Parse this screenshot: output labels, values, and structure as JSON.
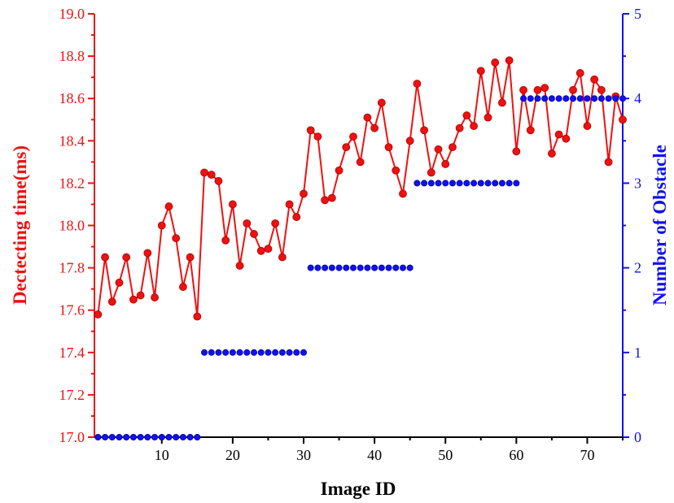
{
  "chart_data": {
    "type": "line",
    "xlabel": "Image ID",
    "ylabel_left": "Dectecting time(ms)",
    "ylabel_right": "Number of Obstacle",
    "xlim": [
      0.5,
      75
    ],
    "ylim_left": [
      17.0,
      19.0
    ],
    "ylim_right": [
      0,
      5
    ],
    "x_ticks": [
      10,
      20,
      30,
      40,
      50,
      60,
      70
    ],
    "y_left_ticks": [
      "17.0",
      "17.2",
      "17.4",
      "17.6",
      "17.8",
      "18.0",
      "18.2",
      "18.4",
      "18.6",
      "18.8",
      "19.0"
    ],
    "y_right_ticks": [
      "0",
      "1",
      "2",
      "3",
      "4",
      "5"
    ],
    "grid": false,
    "series": [
      {
        "axis": "left",
        "color": "#ee1111",
        "marker": "circle",
        "x": [
          1,
          2,
          3,
          4,
          5,
          6,
          7,
          8,
          9,
          10,
          11,
          12,
          13,
          14,
          15,
          16,
          17,
          18,
          19,
          20,
          21,
          22,
          23,
          24,
          25,
          26,
          27,
          28,
          29,
          30,
          31,
          32,
          33,
          34,
          35,
          36,
          37,
          38,
          39,
          40,
          41,
          42,
          43,
          44,
          45,
          46,
          47,
          48,
          49,
          50,
          51,
          52,
          53,
          54,
          55,
          56,
          57,
          58,
          59,
          60,
          61,
          62,
          63,
          64,
          65,
          66,
          67,
          68,
          69,
          70,
          71,
          72,
          73,
          74,
          75
        ],
        "values": [
          17.58,
          17.85,
          17.64,
          17.73,
          17.85,
          17.65,
          17.67,
          17.87,
          17.66,
          18.0,
          18.09,
          17.94,
          17.71,
          17.85,
          17.57,
          18.25,
          18.24,
          18.21,
          17.93,
          18.1,
          17.81,
          18.01,
          17.96,
          17.88,
          17.89,
          18.01,
          17.85,
          18.1,
          18.04,
          18.15,
          18.45,
          18.42,
          18.12,
          18.13,
          18.26,
          18.37,
          18.42,
          18.3,
          18.51,
          18.46,
          18.58,
          18.37,
          18.26,
          18.15,
          18.4,
          18.67,
          18.45,
          18.25,
          18.36,
          18.29,
          18.37,
          18.46,
          18.52,
          18.47,
          18.73,
          18.51,
          18.77,
          18.58,
          18.78,
          18.35,
          18.64,
          18.45,
          18.64,
          18.65,
          18.34,
          18.43,
          18.41,
          18.64,
          18.72,
          18.47,
          18.69,
          18.64,
          18.3,
          18.61,
          18.5
        ]
      },
      {
        "axis": "right",
        "color": "#1111ee",
        "marker": "circle",
        "x": [
          1,
          2,
          3,
          4,
          5,
          6,
          7,
          8,
          9,
          10,
          11,
          12,
          13,
          14,
          15,
          16,
          17,
          18,
          19,
          20,
          21,
          22,
          23,
          24,
          25,
          26,
          27,
          28,
          29,
          30,
          31,
          32,
          33,
          34,
          35,
          36,
          37,
          38,
          39,
          40,
          41,
          42,
          43,
          44,
          45,
          46,
          47,
          48,
          49,
          50,
          51,
          52,
          53,
          54,
          55,
          56,
          57,
          58,
          59,
          60,
          61,
          62,
          63,
          64,
          65,
          66,
          67,
          68,
          69,
          70,
          71,
          72,
          73,
          74,
          75
        ],
        "values": [
          0,
          0,
          0,
          0,
          0,
          0,
          0,
          0,
          0,
          0,
          0,
          0,
          0,
          0,
          0,
          1,
          1,
          1,
          1,
          1,
          1,
          1,
          1,
          1,
          1,
          1,
          1,
          1,
          1,
          1,
          2,
          2,
          2,
          2,
          2,
          2,
          2,
          2,
          2,
          2,
          2,
          2,
          2,
          2,
          2,
          3,
          3,
          3,
          3,
          3,
          3,
          3,
          3,
          3,
          3,
          3,
          3,
          3,
          3,
          3,
          4,
          4,
          4,
          4,
          4,
          4,
          4,
          4,
          4,
          4,
          4,
          4,
          4,
          4,
          4
        ]
      }
    ],
    "colors": {
      "left_axis": "#ee1111",
      "right_axis": "#1111ee",
      "x_axis": "#000000"
    }
  }
}
